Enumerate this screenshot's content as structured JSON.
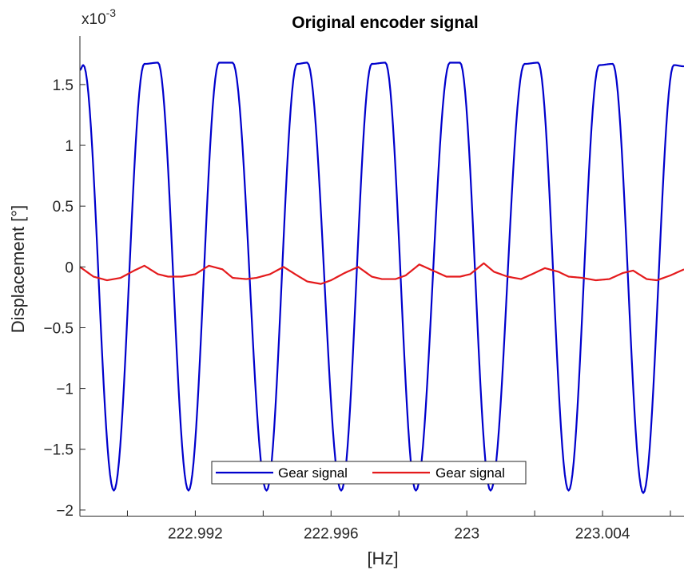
{
  "chart_data": {
    "type": "line",
    "title": "Original encoder signal",
    "xlabel": "[Hz]",
    "ylabel": "Displacement [°]",
    "y_exponent_label": "x10",
    "y_exponent_sup": "-3",
    "xlim": [
      222.9886,
      223.0064
    ],
    "ylim": [
      -2.05,
      1.9
    ],
    "xticks": [
      222.992,
      222.996,
      223,
      223.004
    ],
    "xtick_labels": [
      "222.992",
      "222.996",
      "223",
      "223.004"
    ],
    "xticks_minor": [
      222.99,
      222.994,
      222.998,
      223.002,
      223.006
    ],
    "yticks": [
      -2,
      -1.5,
      -1,
      -0.5,
      0,
      0.5,
      1,
      1.5
    ],
    "ytick_labels": [
      "−2",
      "−1.5",
      "−1",
      "−0.5",
      "0",
      "0.5",
      "1",
      "1.5"
    ],
    "grid": false,
    "legend_position": "bottom-center",
    "legend_orientation": "horizontal",
    "series": [
      {
        "name": "Gear signal",
        "color": "#0000cc",
        "x": [
          222.9886,
          222.9887,
          222.9896,
          222.9905,
          222.9909,
          222.9918,
          222.9927,
          222.9931,
          222.9941,
          222.995,
          222.9953,
          222.9963,
          222.9972,
          222.9976,
          222.9985,
          222.9995,
          222.9998,
          223.0007,
          223.0017,
          223.0021,
          223.003,
          223.0039,
          223.0043,
          223.0052,
          223.0061,
          223.0064
        ],
        "y": [
          1.62,
          1.66,
          -1.84,
          1.67,
          1.68,
          -1.84,
          1.68,
          1.68,
          -1.84,
          1.67,
          1.68,
          -1.84,
          1.67,
          1.68,
          -1.84,
          1.68,
          1.68,
          -1.84,
          1.67,
          1.68,
          -1.84,
          1.66,
          1.67,
          -1.86,
          1.66,
          1.65
        ]
      },
      {
        "name": "Gear signal",
        "color": "#e41a1c",
        "x": [
          222.9886,
          222.989,
          222.9894,
          222.9898,
          222.9902,
          222.9905,
          222.9909,
          222.9912,
          222.9916,
          222.992,
          222.9924,
          222.9928,
          222.9931,
          222.9935,
          222.9938,
          222.9942,
          222.9946,
          222.995,
          222.9953,
          222.9957,
          222.996,
          222.9964,
          222.9968,
          222.9972,
          222.9975,
          222.9979,
          222.9982,
          222.9986,
          222.999,
          222.9994,
          222.9998,
          223.0001,
          223.0005,
          223.0008,
          223.0012,
          223.0016,
          223.002,
          223.0023,
          223.0027,
          223.003,
          223.0034,
          223.0038,
          223.0042,
          223.0046,
          223.0049,
          223.0053,
          223.0056,
          223.006,
          223.0064
        ],
        "y": [
          0.0,
          -0.08,
          -0.11,
          -0.09,
          -0.03,
          0.01,
          -0.06,
          -0.08,
          -0.08,
          -0.06,
          0.01,
          -0.02,
          -0.09,
          -0.1,
          -0.09,
          -0.06,
          0.0,
          -0.07,
          -0.12,
          -0.14,
          -0.11,
          -0.05,
          0.0,
          -0.08,
          -0.1,
          -0.1,
          -0.07,
          0.02,
          -0.03,
          -0.08,
          -0.08,
          -0.06,
          0.03,
          -0.04,
          -0.08,
          -0.1,
          -0.05,
          -0.01,
          -0.04,
          -0.08,
          -0.09,
          -0.11,
          -0.1,
          -0.05,
          -0.03,
          -0.1,
          -0.11,
          -0.07,
          -0.02
        ]
      }
    ]
  }
}
